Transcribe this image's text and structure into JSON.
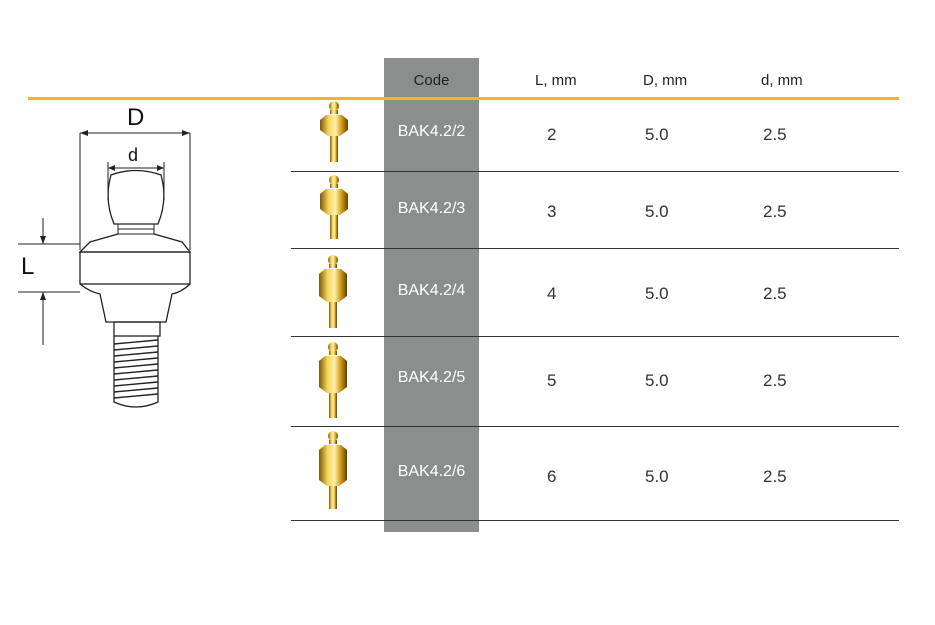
{
  "diagram": {
    "label_D": "D",
    "label_d": "d",
    "label_L": "L"
  },
  "table": {
    "headers": {
      "code": "Code",
      "L": "L, mm",
      "D": "D, mm",
      "d": "d, mm"
    },
    "rows": [
      {
        "code": "BAK4.2/2",
        "L": "2",
        "D": "5.0",
        "d": "2.5"
      },
      {
        "code": "BAK4.2/3",
        "L": "3",
        "D": "5.0",
        "d": "2.5"
      },
      {
        "code": "BAK4.2/4",
        "L": "4",
        "D": "5.0",
        "d": "2.5"
      },
      {
        "code": "BAK4.2/5",
        "L": "5",
        "D": "5.0",
        "d": "2.5"
      },
      {
        "code": "BAK4.2/6",
        "L": "6",
        "D": "5.0",
        "d": "2.5"
      }
    ]
  },
  "colors": {
    "accent_line": "#f3b526",
    "code_column": "#8c8e8e",
    "gold": "#d9a41c"
  }
}
